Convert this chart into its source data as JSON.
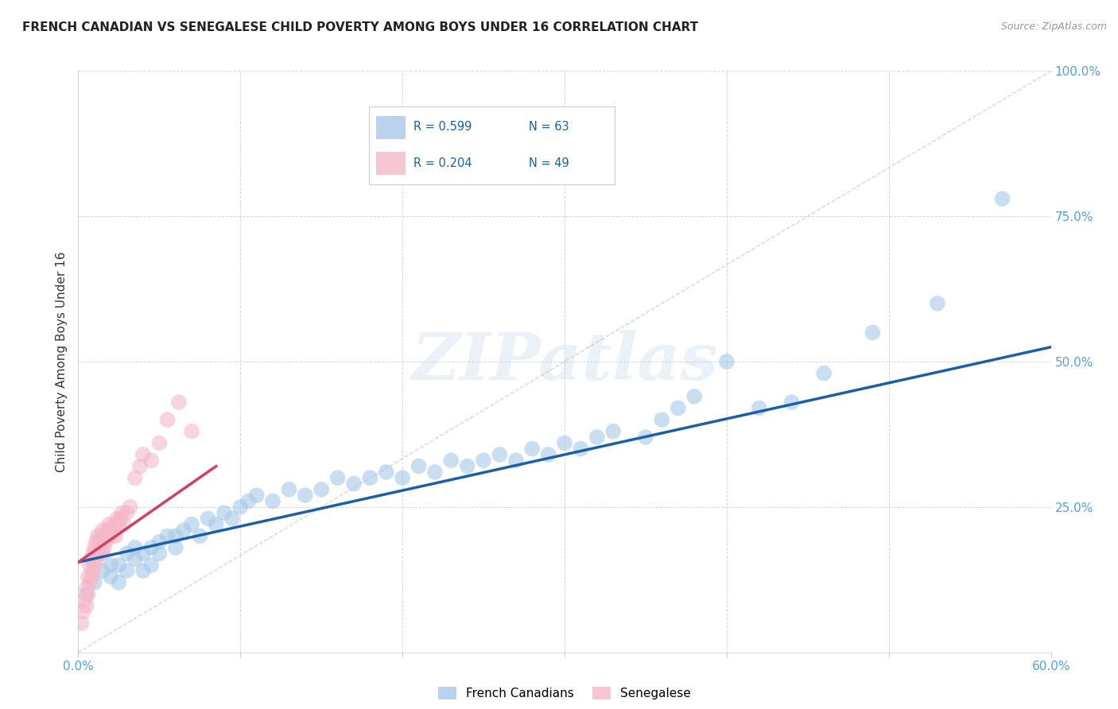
{
  "title": "FRENCH CANADIAN VS SENEGALESE CHILD POVERTY AMONG BOYS UNDER 16 CORRELATION CHART",
  "source": "Source: ZipAtlas.com",
  "ylabel": "Child Poverty Among Boys Under 16",
  "xlim": [
    0,
    0.6
  ],
  "ylim": [
    0,
    1.0
  ],
  "xticks": [
    0.0,
    0.1,
    0.2,
    0.3,
    0.4,
    0.5,
    0.6
  ],
  "yticks": [
    0.0,
    0.25,
    0.5,
    0.75,
    1.0
  ],
  "xticklabels": [
    "0.0%",
    "",
    "",
    "",
    "",
    "",
    "60.0%"
  ],
  "yticklabels_right": [
    "",
    "25.0%",
    "50.0%",
    "75.0%",
    "100.0%"
  ],
  "blue_R": "R = 0.599",
  "blue_N": "N = 63",
  "pink_R": "R = 0.204",
  "pink_N": "N = 49",
  "blue_color": "#a8c8e8",
  "pink_color": "#f4b8c8",
  "blue_line_color": "#1a5fa8",
  "pink_line_color": "#d04060",
  "diagonal_color": "#cccccc",
  "background_color": "#ffffff",
  "grid_color": "#d8d8d8",
  "watermark": "ZIPatlas",
  "legend_label_blue": "French Canadians",
  "legend_label_pink": "Senegalese",
  "blue_line_x0": 0.0,
  "blue_line_y0": 0.155,
  "blue_line_x1": 0.6,
  "blue_line_y1": 0.525,
  "pink_line_x0": 0.0,
  "pink_line_y0": 0.155,
  "pink_line_x1": 0.085,
  "pink_line_y1": 0.32,
  "blue_scatter_x": [
    0.005,
    0.01,
    0.015,
    0.02,
    0.02,
    0.025,
    0.025,
    0.03,
    0.03,
    0.035,
    0.035,
    0.04,
    0.04,
    0.045,
    0.045,
    0.05,
    0.05,
    0.055,
    0.06,
    0.06,
    0.065,
    0.07,
    0.075,
    0.08,
    0.085,
    0.09,
    0.095,
    0.1,
    0.105,
    0.11,
    0.12,
    0.13,
    0.14,
    0.15,
    0.16,
    0.17,
    0.18,
    0.19,
    0.2,
    0.21,
    0.22,
    0.23,
    0.24,
    0.25,
    0.26,
    0.27,
    0.28,
    0.29,
    0.3,
    0.31,
    0.32,
    0.33,
    0.35,
    0.36,
    0.37,
    0.38,
    0.4,
    0.42,
    0.44,
    0.46,
    0.49,
    0.53,
    0.57
  ],
  "blue_scatter_y": [
    0.1,
    0.12,
    0.14,
    0.13,
    0.15,
    0.15,
    0.12,
    0.14,
    0.17,
    0.16,
    0.18,
    0.14,
    0.17,
    0.18,
    0.15,
    0.17,
    0.19,
    0.2,
    0.18,
    0.2,
    0.21,
    0.22,
    0.2,
    0.23,
    0.22,
    0.24,
    0.23,
    0.25,
    0.26,
    0.27,
    0.26,
    0.28,
    0.27,
    0.28,
    0.3,
    0.29,
    0.3,
    0.31,
    0.3,
    0.32,
    0.31,
    0.33,
    0.32,
    0.33,
    0.34,
    0.33,
    0.35,
    0.34,
    0.36,
    0.35,
    0.37,
    0.38,
    0.37,
    0.4,
    0.42,
    0.44,
    0.5,
    0.42,
    0.43,
    0.48,
    0.55,
    0.6,
    0.78
  ],
  "pink_scatter_x": [
    0.002,
    0.003,
    0.004,
    0.005,
    0.005,
    0.006,
    0.006,
    0.007,
    0.007,
    0.008,
    0.008,
    0.009,
    0.009,
    0.01,
    0.01,
    0.011,
    0.011,
    0.012,
    0.012,
    0.013,
    0.013,
    0.014,
    0.014,
    0.015,
    0.015,
    0.016,
    0.016,
    0.017,
    0.018,
    0.019,
    0.02,
    0.021,
    0.022,
    0.023,
    0.024,
    0.025,
    0.026,
    0.027,
    0.028,
    0.03,
    0.032,
    0.035,
    0.038,
    0.04,
    0.045,
    0.05,
    0.055,
    0.062,
    0.07
  ],
  "pink_scatter_y": [
    0.05,
    0.07,
    0.09,
    0.08,
    0.11,
    0.1,
    0.13,
    0.12,
    0.15,
    0.13,
    0.16,
    0.14,
    0.17,
    0.15,
    0.18,
    0.16,
    0.19,
    0.17,
    0.2,
    0.17,
    0.19,
    0.18,
    0.2,
    0.17,
    0.21,
    0.18,
    0.2,
    0.19,
    0.21,
    0.22,
    0.2,
    0.21,
    0.22,
    0.2,
    0.23,
    0.22,
    0.23,
    0.24,
    0.22,
    0.24,
    0.25,
    0.3,
    0.32,
    0.34,
    0.33,
    0.36,
    0.4,
    0.43,
    0.38
  ]
}
